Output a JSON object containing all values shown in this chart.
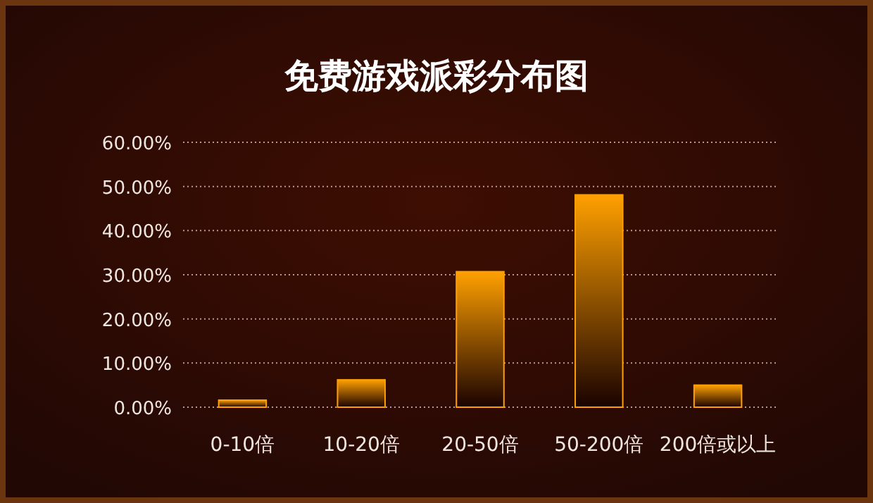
{
  "chart_data": {
    "type": "bar",
    "title": "免费游戏派彩分布图",
    "categories": [
      "0-10倍",
      "10-20倍",
      "20-50倍",
      "50-200倍",
      "200倍或以上"
    ],
    "values": [
      1.6,
      6.2,
      30.7,
      48.1,
      5.0
    ],
    "color": "#ffa000",
    "ylim": [
      0,
      60
    ],
    "yticks": [
      {
        "value": 0,
        "label": "0.00%"
      },
      {
        "value": 10,
        "label": "10.00%"
      },
      {
        "value": 20,
        "label": "20.00%"
      },
      {
        "value": 30,
        "label": "30.00%"
      },
      {
        "value": 40,
        "label": "40.00%"
      },
      {
        "value": 50,
        "label": "50.00%"
      },
      {
        "value": 60,
        "label": "60.00%"
      }
    ],
    "grid": "y"
  }
}
